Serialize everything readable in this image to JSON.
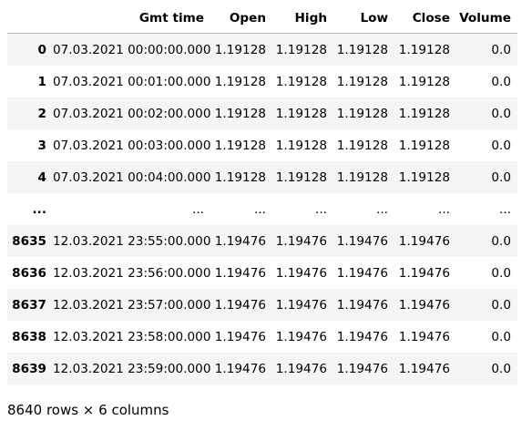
{
  "table": {
    "columns": [
      "",
      "Gmt time",
      "Open",
      "High",
      "Low",
      "Close",
      "Volume"
    ],
    "rows": [
      {
        "index": "0",
        "cells": [
          "07.03.2021 00:00:00.000",
          "1.19128",
          "1.19128",
          "1.19128",
          "1.19128",
          "0.0"
        ]
      },
      {
        "index": "1",
        "cells": [
          "07.03.2021 00:01:00.000",
          "1.19128",
          "1.19128",
          "1.19128",
          "1.19128",
          "0.0"
        ]
      },
      {
        "index": "2",
        "cells": [
          "07.03.2021 00:02:00.000",
          "1.19128",
          "1.19128",
          "1.19128",
          "1.19128",
          "0.0"
        ]
      },
      {
        "index": "3",
        "cells": [
          "07.03.2021 00:03:00.000",
          "1.19128",
          "1.19128",
          "1.19128",
          "1.19128",
          "0.0"
        ]
      },
      {
        "index": "4",
        "cells": [
          "07.03.2021 00:04:00.000",
          "1.19128",
          "1.19128",
          "1.19128",
          "1.19128",
          "0.0"
        ]
      },
      {
        "index": "...",
        "cells": [
          "...",
          "...",
          "...",
          "...",
          "...",
          "..."
        ]
      },
      {
        "index": "8635",
        "cells": [
          "12.03.2021 23:55:00.000",
          "1.19476",
          "1.19476",
          "1.19476",
          "1.19476",
          "0.0"
        ]
      },
      {
        "index": "8636",
        "cells": [
          "12.03.2021 23:56:00.000",
          "1.19476",
          "1.19476",
          "1.19476",
          "1.19476",
          "0.0"
        ]
      },
      {
        "index": "8637",
        "cells": [
          "12.03.2021 23:57:00.000",
          "1.19476",
          "1.19476",
          "1.19476",
          "1.19476",
          "0.0"
        ]
      },
      {
        "index": "8638",
        "cells": [
          "12.03.2021 23:58:00.000",
          "1.19476",
          "1.19476",
          "1.19476",
          "1.19476",
          "0.0"
        ]
      },
      {
        "index": "8639",
        "cells": [
          "12.03.2021 23:59:00.000",
          "1.19476",
          "1.19476",
          "1.19476",
          "1.19476",
          "0.0"
        ]
      }
    ]
  },
  "footer": {
    "shape_text": "8640 rows × 6 columns"
  },
  "colors": {
    "stripe": "#f5f5f5",
    "header_rule": "#bdbdbd"
  }
}
